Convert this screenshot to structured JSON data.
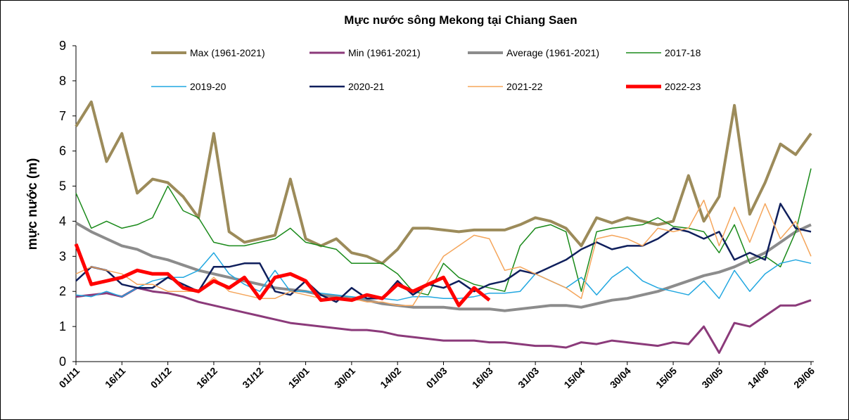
{
  "chart_data": {
    "type": "line",
    "title": "Mực nước sông Mekong tại Chiang Saen",
    "y_label": "mực  nước (m)",
    "categories": [
      "01/11",
      null,
      null,
      "16/11",
      null,
      null,
      "01/12",
      null,
      null,
      "16/12",
      null,
      null,
      "31/12",
      null,
      null,
      "15/01",
      null,
      null,
      "30/01",
      null,
      null,
      "14/02",
      null,
      null,
      "01/03",
      null,
      null,
      "16/03",
      null,
      null,
      "31/03",
      null,
      null,
      "15/04",
      null,
      null,
      "30/04",
      null,
      null,
      "15/05",
      null,
      null,
      "30/05",
      null,
      null,
      "14/06",
      null,
      null,
      "29/06"
    ],
    "ylim": [
      0,
      9
    ],
    "yticks": [
      0,
      1,
      2,
      3,
      4,
      5,
      6,
      7,
      8,
      9
    ],
    "grid": false,
    "series": [
      {
        "name": "Max (1961-2021)",
        "color": "#9c8b5a",
        "line_width": 4,
        "values": [
          6.7,
          7.4,
          5.7,
          6.5,
          4.8,
          5.2,
          5.1,
          4.7,
          4.1,
          6.5,
          3.7,
          3.4,
          3.5,
          3.6,
          5.2,
          3.5,
          3.3,
          3.5,
          3.1,
          3.0,
          2.8,
          3.2,
          3.8,
          3.8,
          3.75,
          3.7,
          3.75,
          3.75,
          3.75,
          3.9,
          4.1,
          4.0,
          3.8,
          3.3,
          4.1,
          3.95,
          4.1,
          4.0,
          3.9,
          4.0,
          5.3,
          4.0,
          4.7,
          7.3,
          4.2,
          5.1,
          6.2,
          5.9,
          6.5
        ]
      },
      {
        "name": "Min (1961-2021)",
        "color": "#8b3a7a",
        "line_width": 3,
        "values": [
          1.85,
          1.9,
          1.95,
          1.85,
          2.1,
          2.0,
          1.95,
          1.85,
          1.7,
          1.6,
          1.5,
          1.4,
          1.3,
          1.2,
          1.1,
          1.05,
          1.0,
          0.95,
          0.9,
          0.9,
          0.85,
          0.75,
          0.7,
          0.65,
          0.6,
          0.6,
          0.6,
          0.55,
          0.55,
          0.5,
          0.45,
          0.45,
          0.4,
          0.55,
          0.5,
          0.6,
          0.55,
          0.5,
          0.45,
          0.55,
          0.5,
          1.0,
          0.25,
          1.1,
          1.0,
          1.3,
          1.6,
          1.6,
          1.75
        ]
      },
      {
        "name": "Average (1961-2021)",
        "color": "#8c8c8c",
        "line_width": 4,
        "values": [
          3.95,
          3.7,
          3.5,
          3.3,
          3.2,
          3.0,
          2.9,
          2.75,
          2.6,
          2.5,
          2.4,
          2.3,
          2.2,
          2.1,
          2.05,
          2.0,
          1.9,
          1.85,
          1.8,
          1.75,
          1.65,
          1.6,
          1.55,
          1.55,
          1.55,
          1.5,
          1.5,
          1.5,
          1.45,
          1.5,
          1.55,
          1.6,
          1.6,
          1.55,
          1.65,
          1.75,
          1.8,
          1.9,
          2.0,
          2.15,
          2.3,
          2.45,
          2.55,
          2.7,
          2.9,
          3.1,
          3.4,
          3.7,
          3.9
        ]
      },
      {
        "name": "2017-18",
        "color": "#1a8a1a",
        "line_width": 1.5,
        "values": [
          4.8,
          3.8,
          4.0,
          3.8,
          3.9,
          4.1,
          5.0,
          4.3,
          4.1,
          3.4,
          3.3,
          3.3,
          3.4,
          3.5,
          3.8,
          3.4,
          3.3,
          3.2,
          2.8,
          2.8,
          2.8,
          2.5,
          2.0,
          1.9,
          2.8,
          2.4,
          2.2,
          2.1,
          2.0,
          3.3,
          3.8,
          3.9,
          3.7,
          2.0,
          3.7,
          3.8,
          3.85,
          3.9,
          4.1,
          3.85,
          3.8,
          3.7,
          3.1,
          3.9,
          2.8,
          3.0,
          2.7,
          3.7,
          5.5
        ]
      },
      {
        "name": "2019-20",
        "color": "#21a7e0",
        "line_width": 1.5,
        "values": [
          1.9,
          1.85,
          2.0,
          1.85,
          2.1,
          2.3,
          2.4,
          2.4,
          2.6,
          3.1,
          2.5,
          2.2,
          2.0,
          2.6,
          2.0,
          2.0,
          1.95,
          1.9,
          1.85,
          1.8,
          1.8,
          1.75,
          1.85,
          1.85,
          1.8,
          1.8,
          1.85,
          1.95,
          1.95,
          2.0,
          2.5,
          2.3,
          2.1,
          2.4,
          1.9,
          2.4,
          2.7,
          2.3,
          2.1,
          2.0,
          1.9,
          2.3,
          1.8,
          2.6,
          2.0,
          2.5,
          2.8,
          2.9,
          2.8
        ]
      },
      {
        "name": "2020-21",
        "color": "#0f1f5c",
        "line_width": 2.5,
        "values": [
          2.3,
          2.7,
          2.6,
          2.2,
          2.1,
          2.1,
          2.4,
          2.2,
          2.0,
          2.7,
          2.7,
          2.8,
          2.8,
          2.0,
          1.9,
          2.3,
          1.9,
          1.7,
          2.1,
          1.8,
          1.8,
          2.3,
          1.9,
          2.2,
          2.1,
          2.3,
          2.0,
          2.2,
          2.3,
          2.6,
          2.5,
          2.7,
          2.9,
          3.2,
          3.4,
          3.2,
          3.3,
          3.3,
          3.5,
          3.8,
          3.7,
          3.5,
          3.7,
          2.9,
          3.1,
          2.9,
          4.5,
          3.8,
          3.7
        ]
      },
      {
        "name": "2021-22",
        "color": "#f5a55a",
        "line_width": 1.5,
        "values": [
          2.5,
          2.7,
          2.6,
          2.5,
          2.2,
          2.2,
          2.0,
          2.0,
          2.0,
          2.4,
          2.0,
          1.9,
          1.8,
          1.8,
          2.0,
          1.9,
          1.8,
          1.8,
          1.8,
          1.7,
          1.7,
          1.6,
          1.6,
          2.3,
          3.0,
          3.3,
          3.6,
          3.5,
          2.6,
          2.7,
          2.5,
          2.3,
          2.1,
          1.8,
          3.5,
          3.6,
          3.5,
          3.3,
          3.8,
          3.7,
          3.8,
          4.6,
          3.3,
          4.4,
          3.4,
          4.5,
          3.5,
          4.0,
          3.0
        ]
      },
      {
        "name": "2022-23",
        "color": "#ff0000",
        "line_width": 5,
        "values": [
          3.35,
          2.2,
          2.3,
          2.4,
          2.6,
          2.5,
          2.5,
          2.1,
          2.0,
          2.3,
          2.1,
          2.4,
          1.8,
          2.4,
          2.5,
          2.3,
          1.75,
          1.8,
          1.75,
          1.9,
          1.8,
          2.2,
          2.0,
          2.2,
          2.4,
          1.6,
          2.1,
          1.75,
          null,
          null,
          null,
          null,
          null,
          null,
          null,
          null,
          null,
          null,
          null,
          null,
          null,
          null,
          null,
          null,
          null,
          null,
          null,
          null,
          null
        ]
      }
    ]
  }
}
